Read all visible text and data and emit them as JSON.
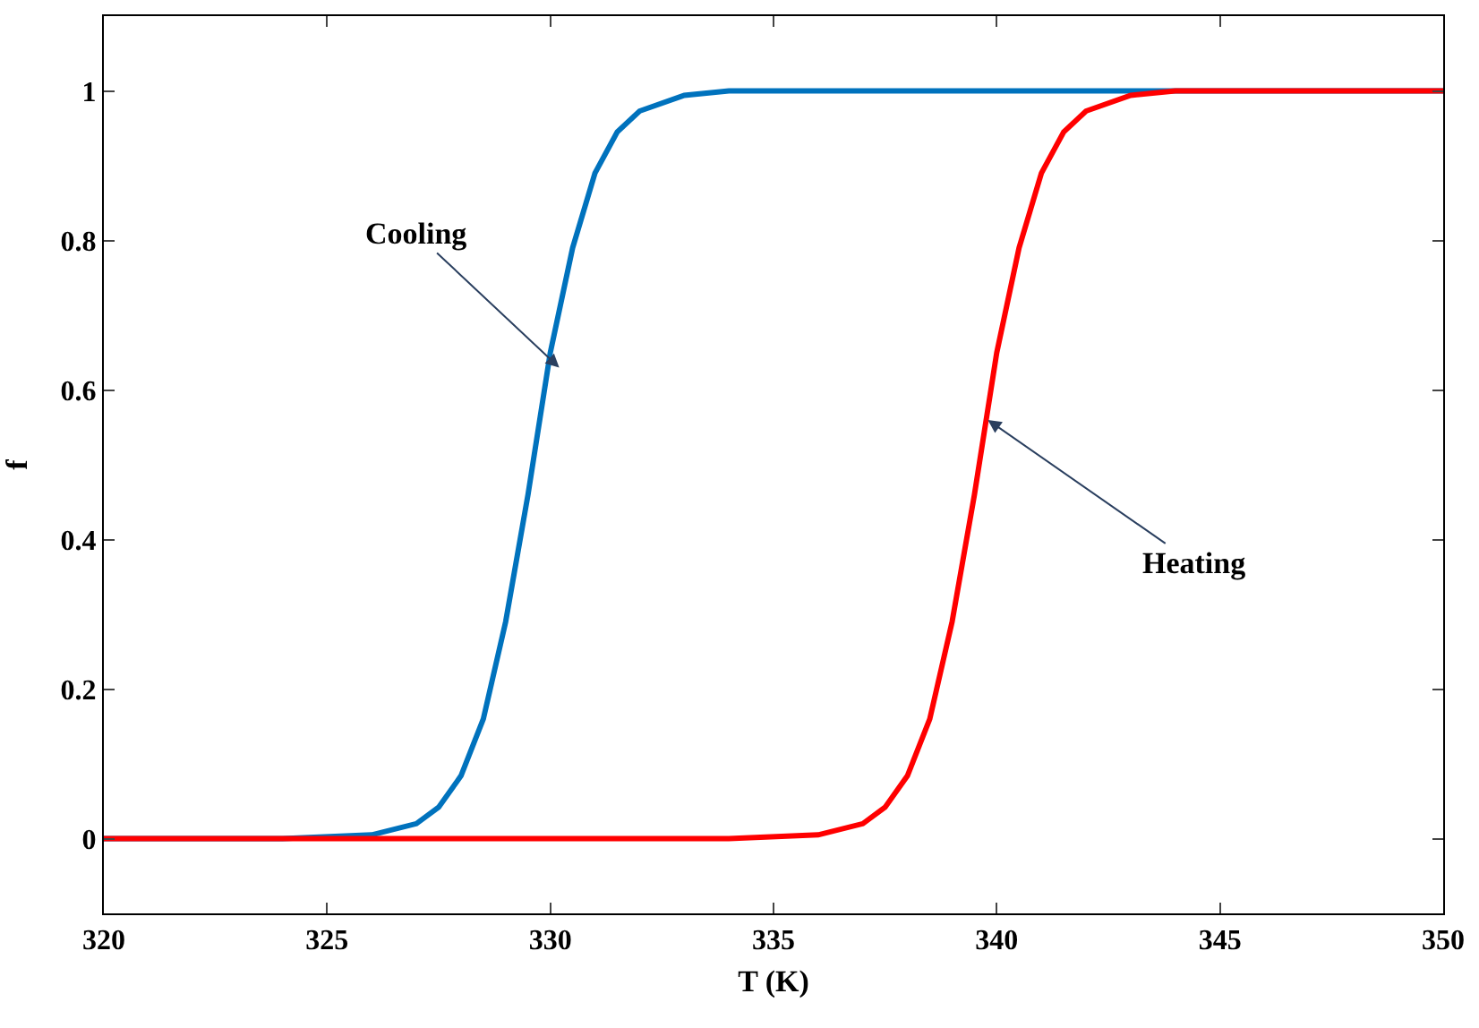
{
  "chart_data": {
    "type": "line",
    "xlabel": "T (K)",
    "ylabel": "f",
    "xlim": [
      320,
      350
    ],
    "xticks": [
      320,
      325,
      330,
      335,
      340,
      345,
      350
    ],
    "ylim": [
      -0.1,
      1.1
    ],
    "yticks": [
      0,
      0.2,
      0.4,
      0.6,
      0.8,
      1
    ],
    "marker": "none",
    "line_style": "solid",
    "series": [
      {
        "color": "#0072bd",
        "x": [
          320,
          324,
          326,
          327,
          327.5,
          328,
          328.5,
          329,
          329.5,
          330,
          330.5,
          331,
          331.5,
          332,
          333,
          334,
          350
        ],
        "values": [
          0,
          0,
          0.005,
          0.02,
          0.042,
          0.084,
          0.16,
          0.29,
          0.46,
          0.65,
          0.79,
          0.89,
          0.945,
          0.973,
          0.994,
          1,
          1
        ]
      },
      {
        "color": "#ff0000",
        "x": [
          320,
          334,
          336,
          337,
          337.5,
          338,
          338.5,
          339,
          339.5,
          340,
          340.5,
          341,
          341.5,
          342,
          343,
          344,
          350
        ],
        "values": [
          0,
          0,
          0.005,
          0.02,
          0.042,
          0.084,
          0.16,
          0.29,
          0.46,
          0.65,
          0.79,
          0.89,
          0.945,
          0.973,
          0.994,
          1,
          1
        ]
      }
    ],
    "annotations": [
      {
        "text": "Cooling",
        "x": 330.2,
        "y": 0.63
      },
      {
        "text": "Heating",
        "x": 339.8,
        "y": 0.56
      }
    ]
  }
}
